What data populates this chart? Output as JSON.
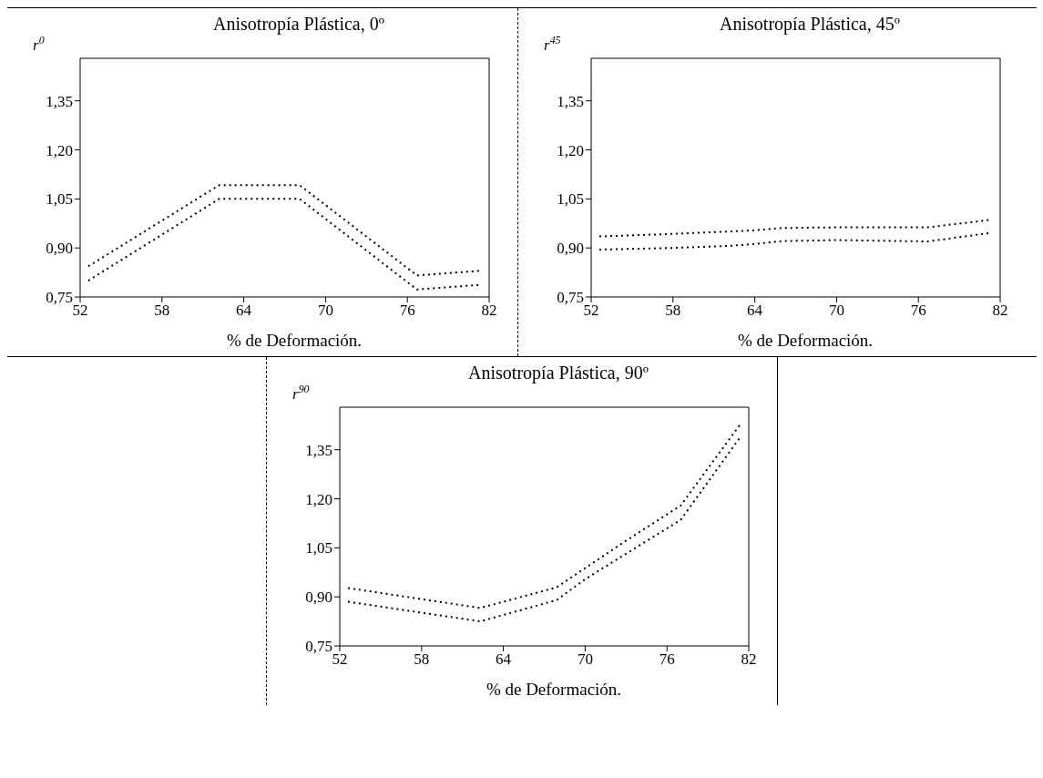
{
  "chart_data": [
    {
      "type": "line",
      "title": "Anisotropía  Plástica, 0º",
      "xlabel": "% de Deformación.",
      "ylabel": "r$^{0}$",
      "line_style": "dotted",
      "xlim": [
        52,
        82
      ],
      "xticks": [
        52,
        58,
        64,
        70,
        76,
        82
      ],
      "ylim": [
        0.75,
        1.48
      ],
      "yticks": [
        {
          "value": 0.75,
          "label": "0,75"
        },
        {
          "value": 0.9,
          "label": "0,90"
        },
        {
          "value": 1.05,
          "label": "1,05"
        },
        {
          "value": 1.2,
          "label": "1,20"
        },
        {
          "value": 1.35,
          "label": "1,35"
        }
      ],
      "series": [
        {
          "color": "#000000",
          "x": [
            52.6,
            62.2,
            68.1,
            76.7,
            81.3
          ],
          "values": [
            0.844,
            1.092,
            1.092,
            0.816,
            0.83
          ]
        },
        {
          "color": "#000000",
          "x": [
            52.6,
            62.2,
            68.1,
            76.7,
            81.3
          ],
          "values": [
            0.8,
            1.05,
            1.05,
            0.773,
            0.787
          ]
        }
      ]
    },
    {
      "type": "line",
      "title": "Anisotropía Plástica, 45º",
      "xlabel": "% de Deformación.",
      "ylabel": "r$^{45}$",
      "line_style": "dotted",
      "xlim": [
        52,
        82
      ],
      "xticks": [
        52,
        58,
        64,
        70,
        76,
        82
      ],
      "ylim": [
        0.75,
        1.48
      ],
      "yticks": [
        {
          "value": 0.75,
          "label": "0,75"
        },
        {
          "value": 0.9,
          "label": "0,90"
        },
        {
          "value": 1.05,
          "label": "1,05"
        },
        {
          "value": 1.2,
          "label": "1,20"
        },
        {
          "value": 1.35,
          "label": "1,35"
        }
      ],
      "series": [
        {
          "color": "#000000",
          "x": [
            52.6,
            58,
            62,
            64,
            66,
            70,
            76.7,
            81.3
          ],
          "values": [
            0.935,
            0.943,
            0.95,
            0.954,
            0.961,
            0.963,
            0.963,
            0.986
          ]
        },
        {
          "color": "#000000",
          "x": [
            52.6,
            58,
            62,
            64,
            66,
            70,
            76.7,
            81.3
          ],
          "values": [
            0.895,
            0.9,
            0.906,
            0.912,
            0.921,
            0.924,
            0.92,
            0.946
          ]
        }
      ]
    },
    {
      "type": "line",
      "title": "Anisotropía Plástica, 90º",
      "xlabel": "% de Deformación.",
      "ylabel": "r$^{90}$",
      "line_style": "dotted",
      "xlim": [
        52,
        82
      ],
      "xticks": [
        52,
        58,
        64,
        70,
        76,
        82
      ],
      "ylim": [
        0.75,
        1.48
      ],
      "yticks": [
        {
          "value": 0.75,
          "label": "0,75"
        },
        {
          "value": 0.9,
          "label": "0,90"
        },
        {
          "value": 1.05,
          "label": "1,05"
        },
        {
          "value": 1.2,
          "label": "1,20"
        },
        {
          "value": 1.35,
          "label": "1,35"
        }
      ],
      "series": [
        {
          "color": "#000000",
          "x": [
            52.6,
            62.3,
            67.9,
            70,
            73,
            77,
            81.4
          ],
          "values": [
            0.927,
            0.866,
            0.929,
            0.988,
            1.072,
            1.179,
            1.429
          ]
        },
        {
          "color": "#000000",
          "x": [
            52.6,
            62.3,
            67.9,
            70,
            73,
            77,
            81.4
          ],
          "values": [
            0.885,
            0.825,
            0.89,
            0.954,
            1.032,
            1.135,
            1.39
          ]
        }
      ]
    }
  ]
}
